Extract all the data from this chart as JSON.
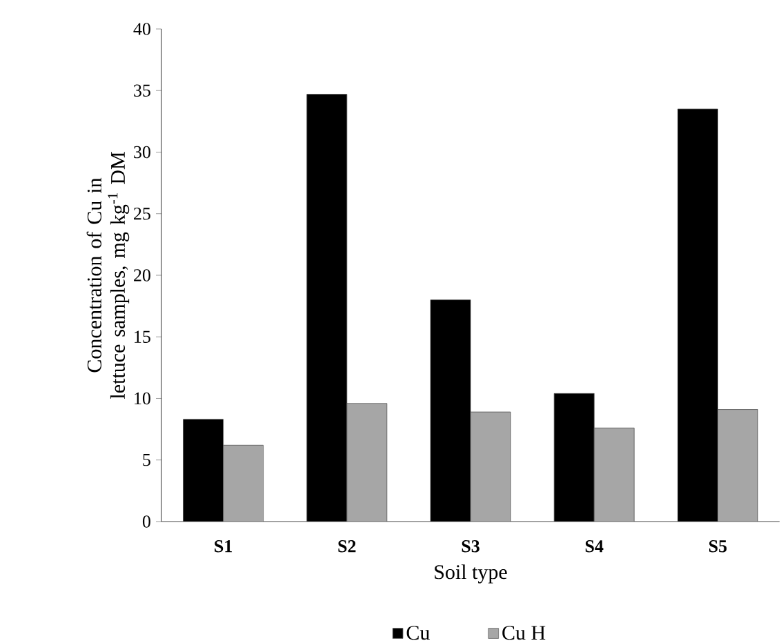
{
  "chart_data": {
    "type": "bar",
    "xlabel": "Soil type",
    "ylabel": "Concentration of Cu in lettuce samples, mg kg$^{-1}$ DM",
    "categories": [
      "S1",
      "S2",
      "S3",
      "S4",
      "S5"
    ],
    "series": [
      {
        "name": "Cu",
        "color": "#000000",
        "values": [
          8.3,
          34.7,
          18.0,
          10.4,
          33.5
        ]
      },
      {
        "name": "Cu H",
        "color": "#a6a6a6",
        "values": [
          6.2,
          9.6,
          8.9,
          7.6,
          9.1
        ]
      }
    ],
    "ylim": [
      0,
      40
    ],
    "yticks": [
      0,
      5,
      10,
      15,
      20,
      25,
      30,
      35,
      40
    ],
    "legend": "bottom",
    "grid": false
  }
}
